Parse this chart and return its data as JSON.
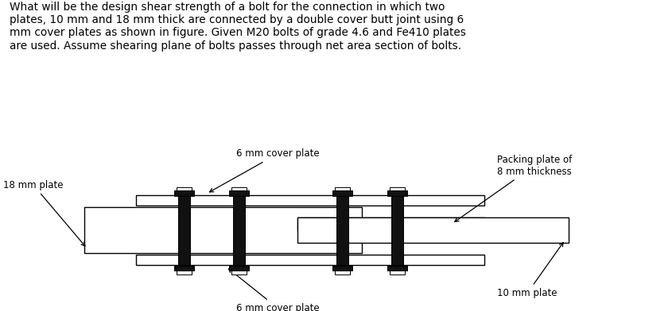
{
  "title_text": "What will be the design shear strength of a bolt for the connection in which two\nplates, 10 mm and 18 mm thick are connected by a double cover butt joint using 6\nmm cover plates as shown in figure. Given M20 bolts of grade 4.6 and Fe410 plates\nare used. Assume shearing plane of bolts passes through net area section of bolts.",
  "label_top_cover": "6 mm cover plate",
  "label_bottom_cover": "6 mm cover plate",
  "label_18mm": "18 mm plate",
  "label_10mm": "10 mm plate",
  "label_packing": "Packing plate of\n8 mm thickness",
  "bg_color": "#ffffff",
  "plate_edge_color": "#000000",
  "bolt_fill": "#111111",
  "bolt_edge": "#000000",
  "packing_fill": "#c8c8c8",
  "cover_fill": "#ffffff",
  "main_fill": "#ffffff",
  "fontsize_label": 8.5,
  "fontsize_title": 9.8
}
